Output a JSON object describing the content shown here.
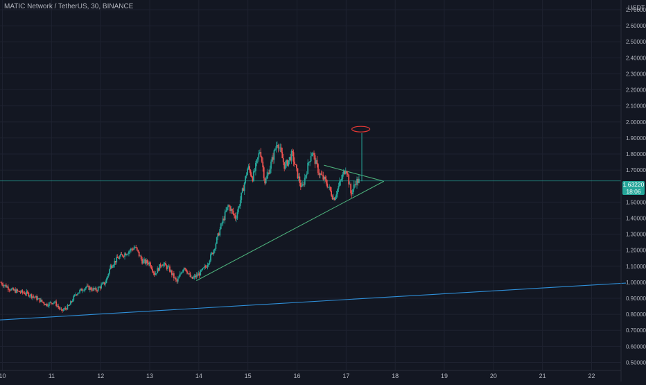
{
  "header": {
    "title": "MATIC Network / TetherUS, 30, BINANCE"
  },
  "colors": {
    "background": "#131722",
    "grid": "#1e2230",
    "up": "#26a69a",
    "down": "#ef5350",
    "axis_text": "#b2b5be",
    "triangle_line": "#4caf7a",
    "support_line": "#2f8fd8",
    "price_line": "#26a69a",
    "annotation": "#e53935"
  },
  "price_badge": {
    "price": "1.63220",
    "countdown": "18:06"
  },
  "chart_data": {
    "type": "candlestick",
    "title": "MATIC Network / TetherUS, 30, BINANCE",
    "ylabel": "USDT",
    "ylim": [
      0.45,
      2.7
    ],
    "xlim": [
      9.95,
      22.6
    ],
    "grid": true,
    "x_ticks": [
      {
        "value": 10,
        "label": "10"
      },
      {
        "value": 11,
        "label": "11"
      },
      {
        "value": 12,
        "label": "12"
      },
      {
        "value": 13,
        "label": "13"
      },
      {
        "value": 14,
        "label": "14"
      },
      {
        "value": 15,
        "label": "15"
      },
      {
        "value": 16,
        "label": "16"
      },
      {
        "value": 17,
        "label": "17"
      },
      {
        "value": 18,
        "label": "18"
      },
      {
        "value": 19,
        "label": "19"
      },
      {
        "value": 20,
        "label": "20"
      },
      {
        "value": 21,
        "label": "21"
      },
      {
        "value": 22,
        "label": "22"
      }
    ],
    "y_ticks": [
      {
        "value": 2.7,
        "label": "2.70000"
      },
      {
        "value": 2.6,
        "label": "2.60000"
      },
      {
        "value": 2.5,
        "label": "2.50000"
      },
      {
        "value": 2.4,
        "label": "2.40000"
      },
      {
        "value": 2.3,
        "label": "2.30000"
      },
      {
        "value": 2.2,
        "label": "2.20000"
      },
      {
        "value": 2.1,
        "label": "2.10000"
      },
      {
        "value": 2.0,
        "label": "2.00000"
      },
      {
        "value": 1.9,
        "label": "1.90000"
      },
      {
        "value": 1.8,
        "label": "1.80000"
      },
      {
        "value": 1.7,
        "label": "1.70000"
      },
      {
        "value": 1.5,
        "label": "1.50000"
      },
      {
        "value": 1.4,
        "label": "1.40000"
      },
      {
        "value": 1.3,
        "label": "1.30000"
      },
      {
        "value": 1.2,
        "label": "1.20000"
      },
      {
        "value": 1.1,
        "label": "1.10000"
      },
      {
        "value": 1.0,
        "label": "1.00000"
      },
      {
        "value": 0.9,
        "label": "0.90000"
      },
      {
        "value": 0.8,
        "label": "0.80000"
      },
      {
        "value": 0.7,
        "label": "0.70000"
      },
      {
        "value": 0.6,
        "label": "0.60000"
      },
      {
        "value": 0.5,
        "label": "0.50000"
      }
    ],
    "current_price": 1.6322,
    "price_path": [
      [
        9.95,
        1.0
      ],
      [
        10.2,
        0.95
      ],
      [
        10.5,
        0.93
      ],
      [
        10.7,
        0.9
      ],
      [
        10.9,
        0.86
      ],
      [
        11.05,
        0.88
      ],
      [
        11.2,
        0.82
      ],
      [
        11.35,
        0.85
      ],
      [
        11.5,
        0.93
      ],
      [
        11.7,
        0.97
      ],
      [
        11.9,
        0.95
      ],
      [
        12.1,
        1.0
      ],
      [
        12.2,
        1.1
      ],
      [
        12.35,
        1.15
      ],
      [
        12.5,
        1.18
      ],
      [
        12.7,
        1.22
      ],
      [
        12.85,
        1.13
      ],
      [
        13.0,
        1.12
      ],
      [
        13.1,
        1.05
      ],
      [
        13.25,
        1.12
      ],
      [
        13.4,
        1.08
      ],
      [
        13.55,
        1.0
      ],
      [
        13.7,
        1.1
      ],
      [
        13.85,
        1.02
      ],
      [
        14.0,
        1.05
      ],
      [
        14.15,
        1.1
      ],
      [
        14.3,
        1.2
      ],
      [
        14.45,
        1.35
      ],
      [
        14.6,
        1.48
      ],
      [
        14.75,
        1.4
      ],
      [
        14.9,
        1.58
      ],
      [
        15.0,
        1.72
      ],
      [
        15.1,
        1.65
      ],
      [
        15.25,
        1.83
      ],
      [
        15.35,
        1.62
      ],
      [
        15.5,
        1.77
      ],
      [
        15.6,
        1.88
      ],
      [
        15.75,
        1.72
      ],
      [
        15.9,
        1.8
      ],
      [
        16.0,
        1.68
      ],
      [
        16.1,
        1.58
      ],
      [
        16.2,
        1.7
      ],
      [
        16.3,
        1.82
      ],
      [
        16.45,
        1.68
      ],
      [
        16.6,
        1.62
      ],
      [
        16.75,
        1.52
      ],
      [
        16.85,
        1.6
      ],
      [
        17.0,
        1.72
      ],
      [
        17.1,
        1.55
      ],
      [
        17.2,
        1.63
      ],
      [
        17.27,
        1.6322
      ]
    ],
    "wicks": [
      {
        "x": 17.32,
        "low": 1.63,
        "high": 1.93
      }
    ],
    "trendlines": [
      {
        "name": "triangle-support",
        "points": [
          [
            13.95,
            1.01
          ],
          [
            17.77,
            1.63
          ]
        ]
      },
      {
        "name": "triangle-resistance",
        "points": [
          [
            16.55,
            1.73
          ],
          [
            17.77,
            1.63
          ]
        ]
      },
      {
        "name": "long-term-support",
        "points": [
          [
            9.95,
            0.765
          ],
          [
            22.7,
            0.995
          ]
        ]
      }
    ],
    "annotations": [
      {
        "type": "ellipse",
        "cx": 17.3,
        "cy": 1.955
      }
    ]
  }
}
